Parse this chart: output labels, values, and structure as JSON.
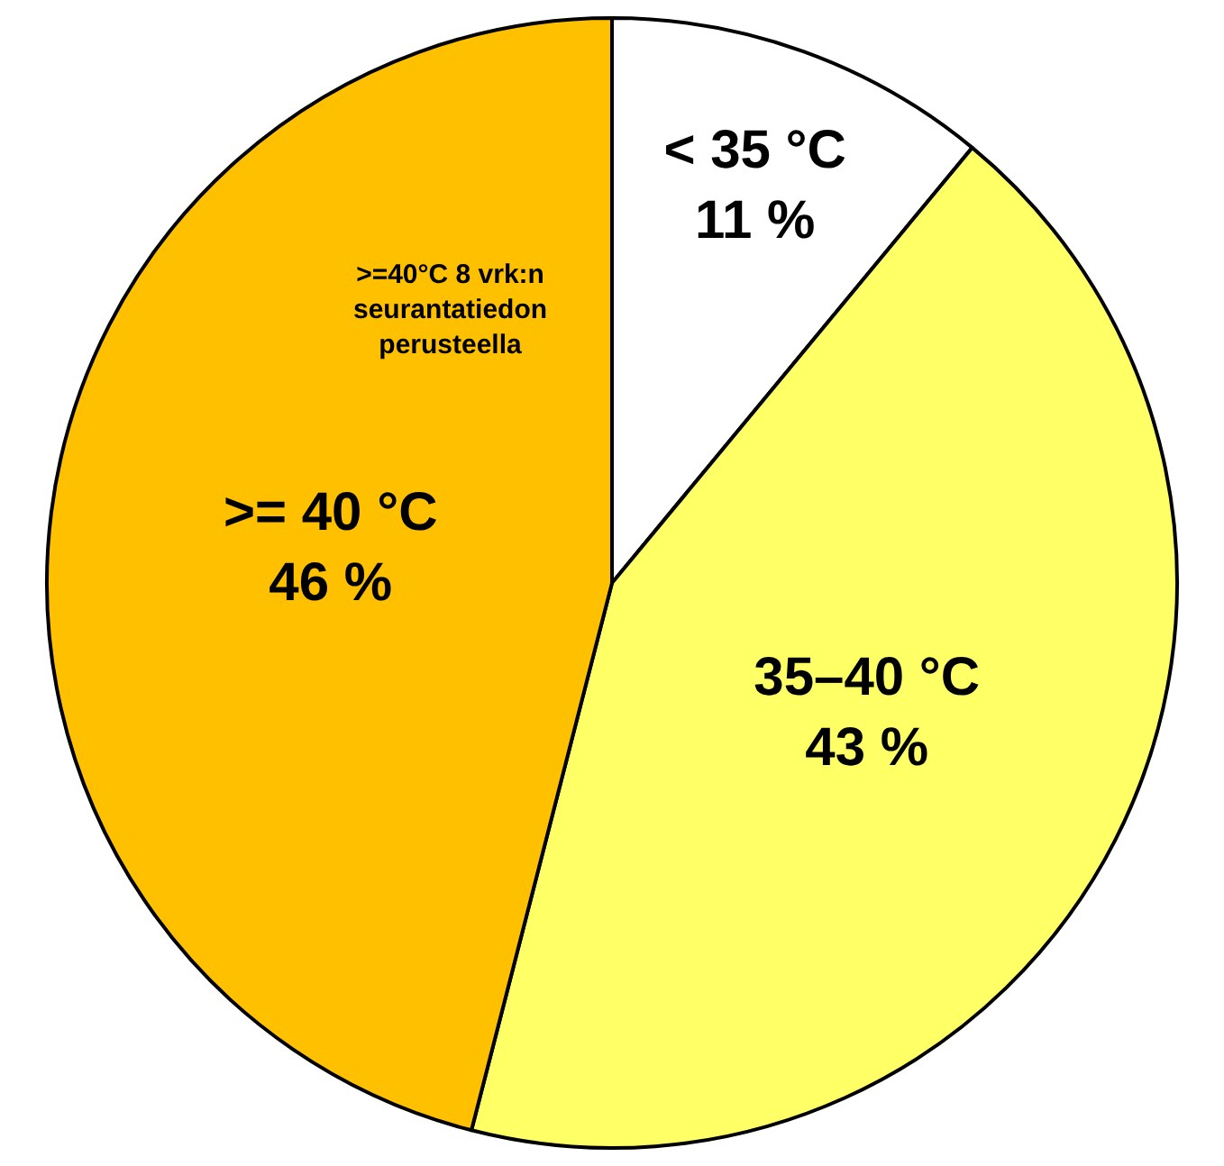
{
  "chart_data": {
    "type": "pie",
    "categories": [
      "< 35 °C",
      "35–40 °C",
      ">= 40 °C"
    ],
    "values": [
      11,
      43,
      46
    ],
    "value_labels": [
      "11 %",
      "43 %",
      "46 %"
    ],
    "colors": [
      "#ffffff",
      "#ffff66",
      "#ffc000"
    ],
    "annotations": [
      ">=40°C 8 vrk:n seurantatiedon perusteella"
    ],
    "legend": false
  }
}
